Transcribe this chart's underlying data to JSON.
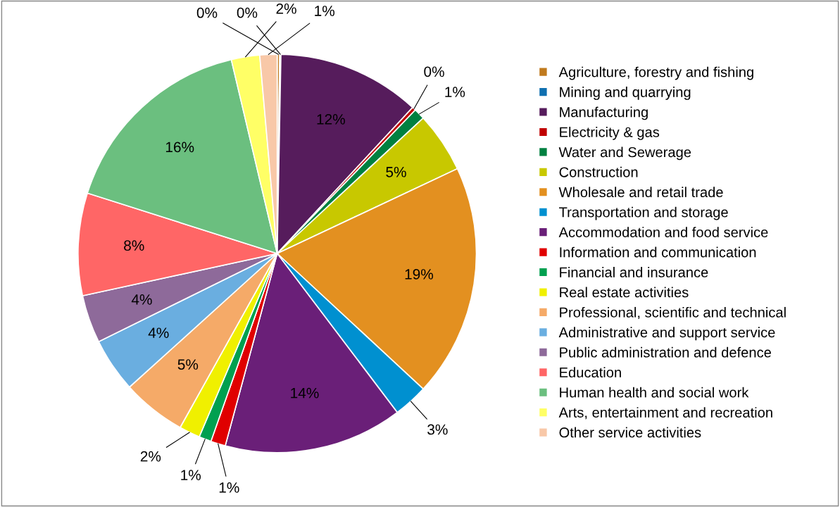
{
  "chart_data": {
    "type": "pie",
    "categories": [
      "Agriculture, forestry and fishing",
      "Mining and quarrying",
      "Manufacturing",
      "Electricity & gas",
      "Water and Sewerage",
      "Construction",
      "Wholesale and retail trade",
      "Transportation and storage",
      "Accommodation and food service",
      "Information and communication",
      "Financial and insurance",
      "Real estate activities",
      "Professional, scientific and technical",
      "Administrative and support service",
      "Public administration and defence",
      "Education",
      "Human health and social work",
      "Arts, entertainment and recreation",
      "Other service activities"
    ],
    "values": [
      0.2,
      0.1,
      11.6,
      0.3,
      0.9,
      4.9,
      18.9,
      2.8,
      14.5,
      1.2,
      1.0,
      1.7,
      5.2,
      4.4,
      3.9,
      8.3,
      16.4,
      2.3,
      1.4
    ],
    "value_labels": [
      "0%",
      "0%",
      "12%",
      "0%",
      "1%",
      "5%",
      "19%",
      "3%",
      "14%",
      "1%",
      "1%",
      "2%",
      "5%",
      "4%",
      "4%",
      "8%",
      "16%",
      "2%",
      "1%"
    ],
    "colors": [
      "#c07a1e",
      "#1070b0",
      "#561c5c",
      "#c00000",
      "#008040",
      "#c8c800",
      "#e39020",
      "#0090d0",
      "#6a1f78",
      "#e00000",
      "#00a050",
      "#f0f000",
      "#f5aa68",
      "#6aaee0",
      "#8e6a9a",
      "#ff6666",
      "#6bbf7f",
      "#ffff66",
      "#f8c8a8"
    ],
    "legend": "right"
  }
}
